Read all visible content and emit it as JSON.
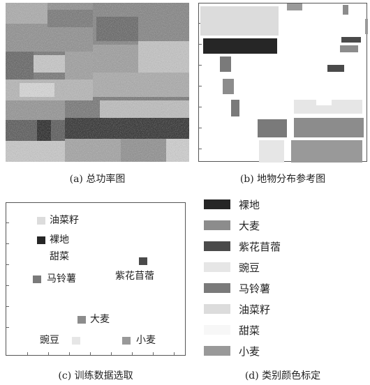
{
  "captions": {
    "a": "(a) 总功率图",
    "b": "(b) 地物分布参考图",
    "c": "(c) 训练数据选取",
    "d": "(d) 类别颜色标定"
  },
  "panel_c_labels": {
    "rapeseed": "油菜籽",
    "bare_land": "裸地",
    "beet": "甜菜",
    "potato": "马铃薯",
    "alfalfa": "紫花苜蓿",
    "barley": "大麦",
    "pea": "豌豆",
    "wheat": "小麦"
  },
  "legend": [
    {
      "label": "裸地",
      "color": "#262626"
    },
    {
      "label": "大麦",
      "color": "#8c8c8c"
    },
    {
      "label": "紫花苜蓿",
      "color": "#4a4a4a"
    },
    {
      "label": "豌豆",
      "color": "#e6e6e6"
    },
    {
      "label": "马铃薯",
      "color": "#7a7a7a"
    },
    {
      "label": "油菜籽",
      "color": "#dcdcdc"
    },
    {
      "label": "甜菜",
      "color": "#f7f7f7"
    },
    {
      "label": "小麦",
      "color": "#999999"
    }
  ]
}
